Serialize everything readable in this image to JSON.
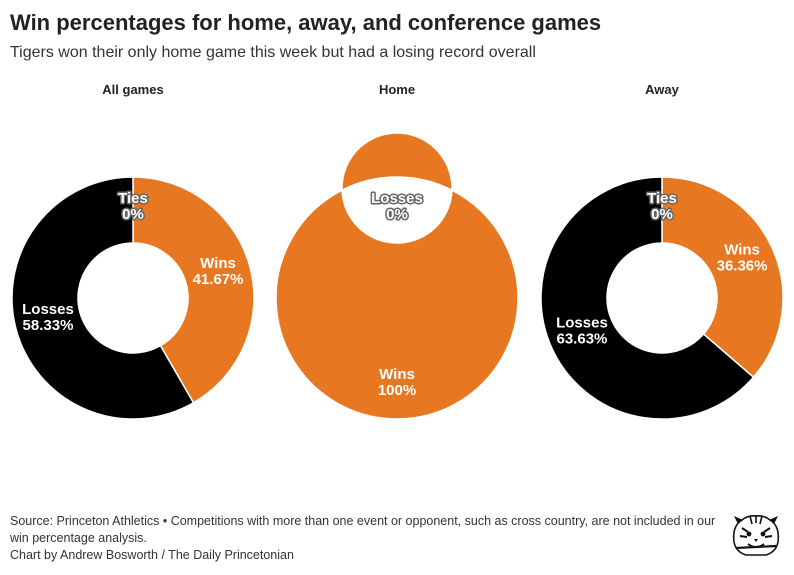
{
  "title": "Win percentages for home, away, and conference games",
  "subtitle": "Tigers won their only home game this week but had a losing record overall",
  "colors": {
    "Wins": "#e87722",
    "Losses": "#000000",
    "Ties": "#9e9e9e"
  },
  "chart_data": [
    {
      "type": "pie",
      "title": "All games",
      "series": [
        {
          "name": "Ties",
          "value": 0,
          "label": "0%"
        },
        {
          "name": "Wins",
          "value": 41.67,
          "label": "41.67%"
        },
        {
          "name": "Losses",
          "value": 58.33,
          "label": "58.33%"
        }
      ]
    },
    {
      "type": "pie",
      "title": "Home",
      "series": [
        {
          "name": "Losses",
          "value": 0,
          "label": "0%"
        },
        {
          "name": "Wins",
          "value": 100,
          "label": "100%"
        }
      ]
    },
    {
      "type": "pie",
      "title": "Away",
      "series": [
        {
          "name": "Ties",
          "value": 0,
          "label": "0%"
        },
        {
          "name": "Wins",
          "value": 36.36,
          "label": "36.36%"
        },
        {
          "name": "Losses",
          "value": 63.63,
          "label": "63.63%"
        }
      ]
    }
  ],
  "footer": {
    "source": "Source: Princeton Athletics • Competitions with more than one event or opponent, such as cross country, are not included in our win percentage analysis.",
    "credit": "Chart by Andrew Bosworth / The Daily Princetonian"
  },
  "logo_icon": "tiger-head-icon"
}
